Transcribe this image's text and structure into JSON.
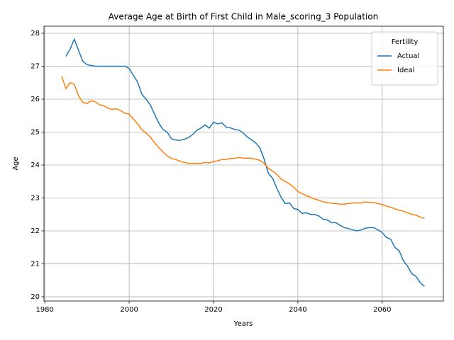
{
  "chart_data": {
    "type": "line",
    "title": "Average Age at Birth of First Child in Male_scoring_3 Population",
    "x_label": "Years",
    "y_label": "Age",
    "x": [
      1984,
      1985,
      1986,
      1987,
      1988,
      1989,
      1990,
      1991,
      1992,
      1993,
      1994,
      1995,
      1996,
      1997,
      1998,
      1999,
      2000,
      2001,
      2002,
      2003,
      2004,
      2005,
      2006,
      2007,
      2008,
      2009,
      2010,
      2011,
      2012,
      2013,
      2014,
      2015,
      2016,
      2017,
      2018,
      2019,
      2020,
      2021,
      2022,
      2023,
      2024,
      2025,
      2026,
      2027,
      2028,
      2029,
      2030,
      2031,
      2032,
      2033,
      2034,
      2035,
      2036,
      2037,
      2038,
      2039,
      2040,
      2041,
      2042,
      2043,
      2044,
      2045,
      2046,
      2047,
      2048,
      2049,
      2050,
      2051,
      2052,
      2053,
      2054,
      2055,
      2056,
      2057,
      2058,
      2059,
      2060,
      2061,
      2062,
      2063,
      2064,
      2065,
      2066,
      2067,
      2068,
      2069,
      2070
    ],
    "series": [
      {
        "name": "Actual",
        "color": "#1f77b4",
        "values": [
          null,
          27.3,
          27.52,
          27.82,
          27.48,
          27.15,
          27.05,
          27.02,
          27.0,
          27.0,
          27.0,
          27.0,
          27.0,
          27.0,
          27.0,
          27.0,
          26.93,
          26.72,
          26.52,
          26.15,
          26.0,
          25.83,
          25.55,
          25.28,
          25.08,
          25.0,
          24.8,
          24.76,
          24.75,
          24.78,
          24.83,
          24.92,
          25.05,
          25.12,
          25.22,
          25.12,
          25.3,
          25.25,
          25.28,
          25.15,
          25.13,
          25.08,
          25.06,
          24.98,
          24.85,
          24.77,
          24.67,
          24.52,
          24.18,
          23.75,
          23.6,
          23.3,
          23.03,
          22.83,
          22.85,
          22.68,
          22.65,
          22.53,
          22.55,
          22.5,
          22.5,
          22.45,
          22.35,
          22.33,
          22.25,
          22.25,
          22.17,
          22.1,
          22.07,
          22.03,
          22.0,
          22.03,
          22.08,
          22.1,
          22.1,
          22.03,
          21.95,
          21.8,
          21.75,
          21.5,
          21.4,
          21.1,
          20.93,
          20.7,
          20.62,
          20.43,
          20.32
        ]
      },
      {
        "name": "Ideal",
        "color": "#ff7f0e",
        "values": [
          26.7,
          26.32,
          26.5,
          26.45,
          26.1,
          25.9,
          25.87,
          25.95,
          25.92,
          25.83,
          25.8,
          25.72,
          25.69,
          25.71,
          25.65,
          25.57,
          25.55,
          25.4,
          25.25,
          25.07,
          24.97,
          24.85,
          24.68,
          24.53,
          24.4,
          24.28,
          24.2,
          24.17,
          24.12,
          24.08,
          24.05,
          24.05,
          24.05,
          24.05,
          24.08,
          24.06,
          24.11,
          24.13,
          24.17,
          24.17,
          24.2,
          24.2,
          24.23,
          24.21,
          24.21,
          24.2,
          24.18,
          24.14,
          24.05,
          23.9,
          23.82,
          23.72,
          23.58,
          23.5,
          23.43,
          23.33,
          23.2,
          23.13,
          23.07,
          23.02,
          22.97,
          22.93,
          22.88,
          22.86,
          22.84,
          22.83,
          22.81,
          22.81,
          22.83,
          22.85,
          22.85,
          22.85,
          22.88,
          22.86,
          22.86,
          22.83,
          22.8,
          22.75,
          22.72,
          22.67,
          22.63,
          22.6,
          22.55,
          22.5,
          22.48,
          22.42,
          22.38
        ]
      }
    ],
    "legend_title": "Fertility",
    "legend": "upper right",
    "xlim": [
      1979.8,
      2074.5
    ],
    "ylim": [
      19.87,
      28.215
    ],
    "xticks": [
      1980,
      2000,
      2020,
      2040,
      2060
    ],
    "yticks": [
      20,
      21,
      22,
      23,
      24,
      25,
      26,
      27,
      28
    ],
    "grid": true
  }
}
